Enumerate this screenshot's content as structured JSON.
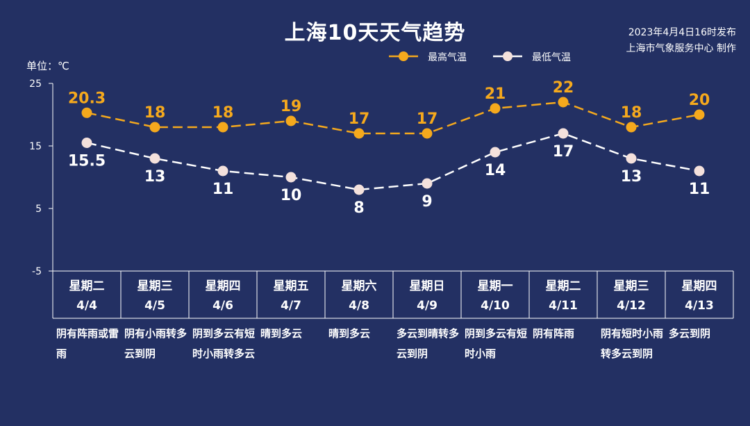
{
  "header": {
    "title": "上海10天天气趋势",
    "publish_line1": "2023年4月4日16时发布",
    "publish_line2": "上海市气象服务中心 制作"
  },
  "unit_label": "单位：℃",
  "legend": {
    "high_label": "最高气温",
    "low_label": "最低气温"
  },
  "colors": {
    "background": "#233063",
    "high": "#f5a91d",
    "low": "#ffffff",
    "low_marker": "#f4e1dc",
    "axis": "#ffffff"
  },
  "chart_data": {
    "type": "line",
    "ylim": [
      -5,
      25
    ],
    "yticks": [
      "25",
      "15",
      "5",
      "-5"
    ],
    "categories": [
      "4/4",
      "4/5",
      "4/6",
      "4/7",
      "4/8",
      "4/9",
      "4/10",
      "4/11",
      "4/12",
      "4/13"
    ],
    "series": [
      {
        "name": "最高气温",
        "values": [
          20.3,
          18,
          18,
          19,
          17,
          17,
          21,
          22,
          18,
          20
        ],
        "labels": [
          "20.3",
          "18",
          "18",
          "19",
          "17",
          "17",
          "21",
          "22",
          "18",
          "20"
        ]
      },
      {
        "name": "最低气温",
        "values": [
          15.5,
          13,
          11,
          10,
          8,
          9,
          14,
          17,
          13,
          11
        ],
        "labels": [
          "15.5",
          "13",
          "11",
          "10",
          "8",
          "9",
          "14",
          "17",
          "13",
          "11"
        ]
      }
    ]
  },
  "days": [
    {
      "weekday": "星期二",
      "date": "4/4",
      "desc": "阴有阵雨或雷雨"
    },
    {
      "weekday": "星期三",
      "date": "4/5",
      "desc": "阴有小雨转多云到阴"
    },
    {
      "weekday": "星期四",
      "date": "4/6",
      "desc": "阴到多云有短时小雨转多云"
    },
    {
      "weekday": "星期五",
      "date": "4/7",
      "desc": "晴到多云"
    },
    {
      "weekday": "星期六",
      "date": "4/8",
      "desc": "晴到多云"
    },
    {
      "weekday": "星期日",
      "date": "4/9",
      "desc": "多云到晴转多云到阴"
    },
    {
      "weekday": "星期一",
      "date": "4/10",
      "desc": "阴到多云有短时小雨"
    },
    {
      "weekday": "星期二",
      "date": "4/11",
      "desc": "阴有阵雨"
    },
    {
      "weekday": "星期三",
      "date": "4/12",
      "desc": "阴有短时小雨转多云到阴"
    },
    {
      "weekday": "星期四",
      "date": "4/13",
      "desc": "多云到阴"
    }
  ]
}
